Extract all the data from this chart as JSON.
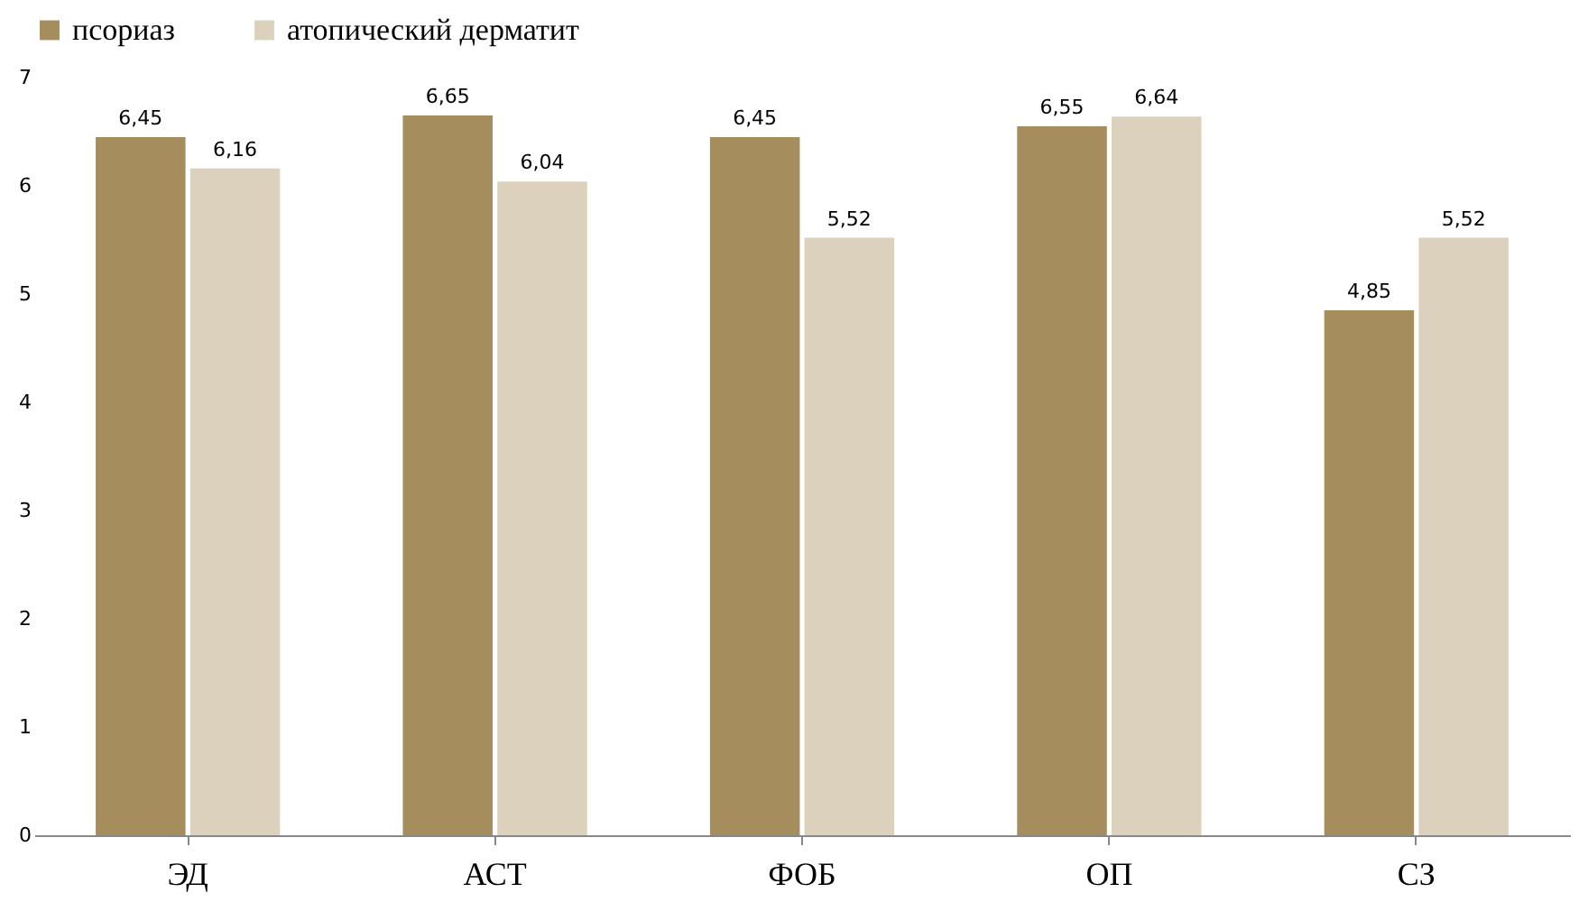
{
  "chart_data": {
    "type": "bar",
    "categories": [
      "ЭД",
      "АСТ",
      "ФОБ",
      "ОП",
      "СЗ"
    ],
    "series": [
      {
        "name": "псориаз",
        "color": "#a58d5e",
        "values": [
          6.45,
          6.65,
          6.45,
          6.55,
          4.85
        ],
        "value_labels": [
          "6,45",
          "6,65",
          "6,45",
          "6,55",
          "4,85"
        ]
      },
      {
        "name": "атопический дерматит",
        "color": "#dbd1bd",
        "values": [
          6.16,
          6.04,
          5.52,
          6.64,
          5.52
        ],
        "value_labels": [
          "6,16",
          "6,04",
          "5,52",
          "6,64",
          "5,52"
        ]
      }
    ],
    "ylim": [
      0,
      7
    ],
    "yticks": [
      0,
      1,
      2,
      3,
      4,
      5,
      6,
      7
    ],
    "grid": false,
    "legend": "top"
  }
}
